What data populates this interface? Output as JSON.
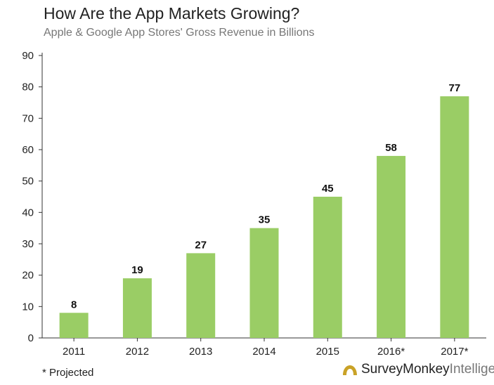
{
  "chart_data": {
    "type": "bar",
    "title": "How Are the App Markets Growing?",
    "subtitle": "Apple & Google App Stores' Gross Revenue in Billions",
    "categories": [
      "2011",
      "2012",
      "2013",
      "2014",
      "2015",
      "2016*",
      "2017*"
    ],
    "values": [
      8,
      19,
      27,
      35,
      45,
      58,
      77
    ],
    "data_labels": [
      "8",
      "19",
      "27",
      "35",
      "45",
      "58",
      "77"
    ],
    "ylim": [
      0,
      90
    ],
    "yticks": [
      0,
      10,
      20,
      30,
      40,
      50,
      60,
      70,
      80,
      90
    ],
    "xlabel": "",
    "ylabel": "",
    "grid": false,
    "bar_color": "#9ACD65"
  },
  "footnote": "* Projected",
  "brand": {
    "name": "SurveyMonkey",
    "suffix": "Intelligence",
    "logo_icon": "surveymonkey-logo-icon",
    "logo_color": "#C9A227"
  }
}
